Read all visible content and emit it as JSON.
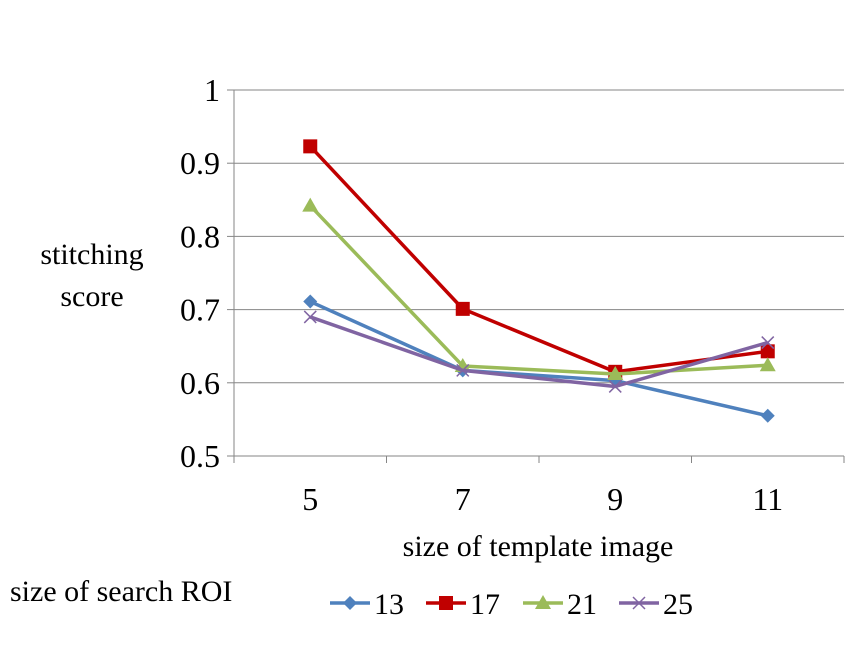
{
  "chart_data": {
    "type": "line",
    "title": "",
    "xlabel": "size of template image",
    "ylabel_lines": [
      "stitching",
      "score"
    ],
    "categories": [
      "5",
      "7",
      "9",
      "11"
    ],
    "ylim": [
      0.5,
      1
    ],
    "yticks": [
      "0.5",
      "0.6",
      "0.7",
      "0.8",
      "0.9",
      "1"
    ],
    "grid": true,
    "legend_title": "size of search ROI",
    "legend_position": "bottom",
    "series": [
      {
        "name": "13",
        "values": [
          0.711,
          0.617,
          0.603,
          0.555
        ],
        "color": "#4F81BD",
        "marker": "diamond"
      },
      {
        "name": "17",
        "values": [
          0.923,
          0.701,
          0.615,
          0.643
        ],
        "color": "#C00000",
        "marker": "square"
      },
      {
        "name": "21",
        "values": [
          0.842,
          0.623,
          0.612,
          0.624
        ],
        "color": "#9BBB59",
        "marker": "triangle"
      },
      {
        "name": "25",
        "values": [
          0.69,
          0.617,
          0.595,
          0.655
        ],
        "color": "#8064A2",
        "marker": "x"
      }
    ]
  }
}
